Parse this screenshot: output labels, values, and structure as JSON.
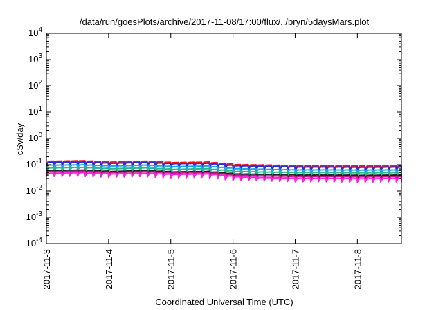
{
  "chart_data": {
    "type": "line",
    "title": "/data/run/goesPlots/archive/2017-11-08/17:00/flux/../bryn/5daysMars.plot",
    "xlabel": "Coordinated Universal Time (UTC)",
    "ylabel": "cSv/day",
    "y_scale": "log",
    "ylim": [
      0.0001,
      10000
    ],
    "xlim": [
      "2017-11-03T00:00",
      "2017-11-08T17:00"
    ],
    "grid": false,
    "legend": "none",
    "y_ticks": [
      {
        "base": "10",
        "exp": "-4",
        "value": 0.0001
      },
      {
        "base": "10",
        "exp": "-3",
        "value": 0.001
      },
      {
        "base": "10",
        "exp": "-2",
        "value": 0.01
      },
      {
        "base": "10",
        "exp": "-1",
        "value": 0.1
      },
      {
        "base": "10",
        "exp": "0",
        "value": 1
      },
      {
        "base": "10",
        "exp": "1",
        "value": 10
      },
      {
        "base": "10",
        "exp": "2",
        "value": 100
      },
      {
        "base": "10",
        "exp": "3",
        "value": 1000
      },
      {
        "base": "10",
        "exp": "4",
        "value": 10000
      }
    ],
    "x_ticks": [
      {
        "label": "2017-11-3",
        "value": "2017-11-03T00:00"
      },
      {
        "label": "2017-11-4",
        "value": "2017-11-04T00:00"
      },
      {
        "label": "2017-11-5",
        "value": "2017-11-05T00:00"
      },
      {
        "label": "2017-11-6",
        "value": "2017-11-06T00:00"
      },
      {
        "label": "2017-11-7",
        "value": "2017-11-07T00:00"
      },
      {
        "label": "2017-11-8",
        "value": "2017-11-08T00:00"
      }
    ],
    "sawtooth_period_hours": 3,
    "sawtooth_drop_fraction": 0.25,
    "series": [
      {
        "color": "#e8142d",
        "x": [
          "2017-11-03T00:00",
          "2017-11-03T12:00",
          "2017-11-04T00:00",
          "2017-11-04T12:00",
          "2017-11-05T00:00",
          "2017-11-05T12:00",
          "2017-11-06T00:00",
          "2017-11-06T12:00",
          "2017-11-07T00:00",
          "2017-11-07T12:00",
          "2017-11-08T00:00",
          "2017-11-08T17:00"
        ],
        "y": [
          0.135,
          0.14,
          0.125,
          0.135,
          0.12,
          0.125,
          0.1,
          0.095,
          0.09,
          0.09,
          0.088,
          0.09
        ]
      },
      {
        "color": "#2530d8",
        "x": [
          "2017-11-03T00:00",
          "2017-11-03T12:00",
          "2017-11-04T00:00",
          "2017-11-04T12:00",
          "2017-11-05T00:00",
          "2017-11-05T12:00",
          "2017-11-06T00:00",
          "2017-11-06T12:00",
          "2017-11-07T00:00",
          "2017-11-07T12:00",
          "2017-11-08T00:00",
          "2017-11-08T17:00"
        ],
        "y": [
          0.122,
          0.126,
          0.113,
          0.122,
          0.108,
          0.112,
          0.09,
          0.086,
          0.081,
          0.081,
          0.079,
          0.081
        ]
      },
      {
        "color": "#1aa6e0",
        "x": [
          "2017-11-03T00:00",
          "2017-11-03T12:00",
          "2017-11-04T00:00",
          "2017-11-04T12:00",
          "2017-11-05T00:00",
          "2017-11-05T12:00",
          "2017-11-06T00:00",
          "2017-11-06T12:00",
          "2017-11-07T00:00",
          "2017-11-07T12:00",
          "2017-11-08T00:00",
          "2017-11-08T17:00"
        ],
        "y": [
          0.095,
          0.098,
          0.088,
          0.095,
          0.084,
          0.088,
          0.07,
          0.066,
          0.063,
          0.063,
          0.062,
          0.063
        ]
      },
      {
        "color": "#25b88a",
        "x": [
          "2017-11-03T00:00",
          "2017-11-03T12:00",
          "2017-11-04T00:00",
          "2017-11-04T12:00",
          "2017-11-05T00:00",
          "2017-11-05T12:00",
          "2017-11-06T00:00",
          "2017-11-06T12:00",
          "2017-11-07T00:00",
          "2017-11-07T12:00",
          "2017-11-08T00:00",
          "2017-11-08T17:00"
        ],
        "y": [
          0.075,
          0.078,
          0.07,
          0.075,
          0.066,
          0.07,
          0.055,
          0.052,
          0.05,
          0.05,
          0.049,
          0.05
        ]
      },
      {
        "color": "#222222",
        "x": [
          "2017-11-03T00:00",
          "2017-11-03T12:00",
          "2017-11-04T00:00",
          "2017-11-04T12:00",
          "2017-11-05T00:00",
          "2017-11-05T12:00",
          "2017-11-06T00:00",
          "2017-11-06T12:00",
          "2017-11-07T00:00",
          "2017-11-07T12:00",
          "2017-11-08T00:00",
          "2017-11-08T17:00"
        ],
        "y": [
          0.06,
          0.062,
          0.055,
          0.06,
          0.053,
          0.055,
          0.044,
          0.042,
          0.04,
          0.04,
          0.039,
          0.04
        ]
      },
      {
        "color": "#c21c8a",
        "x": [
          "2017-11-03T00:00",
          "2017-11-03T12:00",
          "2017-11-04T00:00",
          "2017-11-04T12:00",
          "2017-11-05T00:00",
          "2017-11-05T12:00",
          "2017-11-06T00:00",
          "2017-11-06T12:00",
          "2017-11-07T00:00",
          "2017-11-07T12:00",
          "2017-11-08T00:00",
          "2017-11-08T17:00"
        ],
        "y": [
          0.054,
          0.056,
          0.05,
          0.054,
          0.048,
          0.05,
          0.039,
          0.037,
          0.035,
          0.035,
          0.034,
          0.035
        ]
      },
      {
        "color": "#ff22e0",
        "x": [
          "2017-11-03T00:00",
          "2017-11-03T12:00",
          "2017-11-04T00:00",
          "2017-11-04T12:00",
          "2017-11-05T00:00",
          "2017-11-05T12:00",
          "2017-11-06T00:00",
          "2017-11-06T12:00",
          "2017-11-07T00:00",
          "2017-11-07T12:00",
          "2017-11-08T00:00",
          "2017-11-08T17:00"
        ],
        "y": [
          0.047,
          0.049,
          0.044,
          0.047,
          0.042,
          0.044,
          0.034,
          0.032,
          0.03,
          0.03,
          0.029,
          0.03
        ]
      }
    ]
  }
}
